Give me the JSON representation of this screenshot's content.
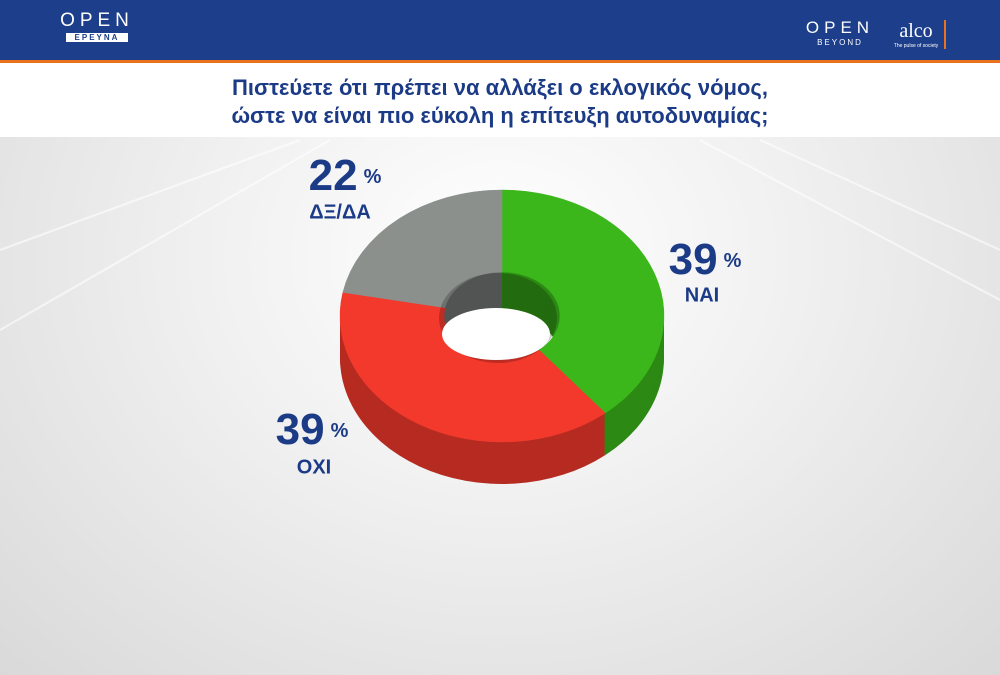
{
  "header": {
    "left_logo": "OPEN",
    "left_logo_sub": "ΕΡΕΥΝΑ",
    "right_logo": "OPEN",
    "right_logo_sub": "BEYOND",
    "partner": "alco",
    "partner_sub": "The pulse of society"
  },
  "chart_data": {
    "type": "donut",
    "title": "Πιστεύετε ότι πρέπει να αλλάξει ο εκλογικός νόμος,\nώστε να είναι πιο εύκολη η επίτευξη αυτοδυναμίας;",
    "categories": [
      "ΝΑΙ",
      "ΟΧΙ",
      "ΔΞ/ΔΑ"
    ],
    "values": [
      39,
      39,
      22
    ],
    "unit": "%",
    "colors": [
      "#3bb61b",
      "#f2392c",
      "#8b908d"
    ]
  }
}
